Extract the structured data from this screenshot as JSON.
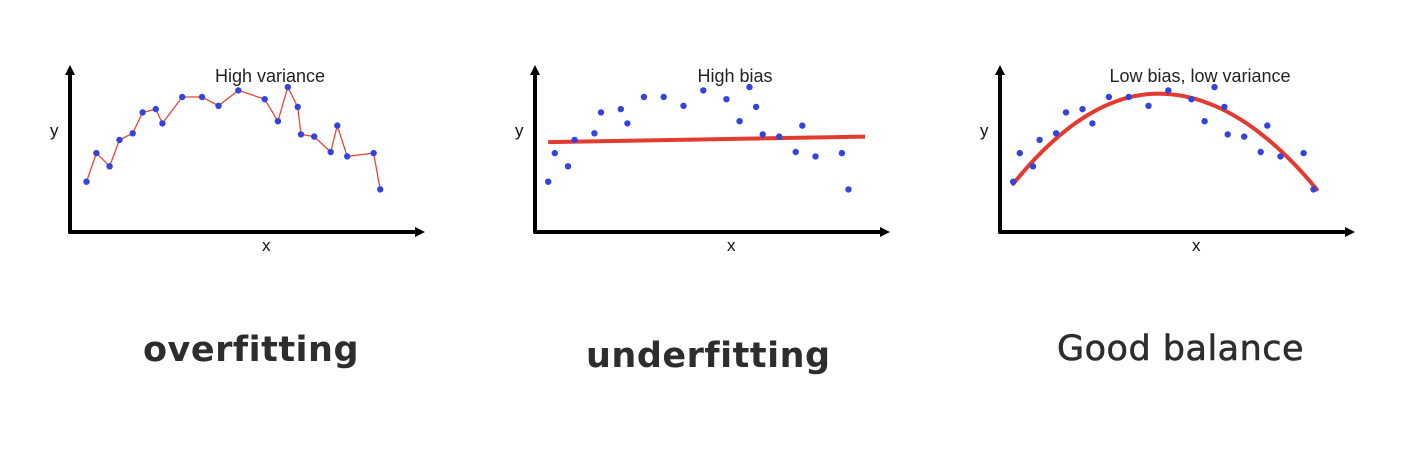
{
  "chart_data": [
    {
      "type": "scatter",
      "title": "High variance",
      "xlabel": "x",
      "ylabel": "y",
      "grid": false,
      "fit": "interpolating polyline through every point",
      "points": [
        [
          0.05,
          0.23
        ],
        [
          0.08,
          0.49
        ],
        [
          0.12,
          0.37
        ],
        [
          0.15,
          0.61
        ],
        [
          0.19,
          0.67
        ],
        [
          0.22,
          0.86
        ],
        [
          0.26,
          0.89
        ],
        [
          0.28,
          0.76
        ],
        [
          0.34,
          1.0
        ],
        [
          0.4,
          1.0
        ],
        [
          0.45,
          0.92
        ],
        [
          0.51,
          1.06
        ],
        [
          0.59,
          0.98
        ],
        [
          0.63,
          0.78
        ],
        [
          0.66,
          1.09
        ],
        [
          0.69,
          0.91
        ],
        [
          0.7,
          0.66
        ],
        [
          0.74,
          0.64
        ],
        [
          0.79,
          0.5
        ],
        [
          0.81,
          0.74
        ],
        [
          0.84,
          0.46
        ],
        [
          0.92,
          0.49
        ],
        [
          0.94,
          0.16
        ]
      ]
    },
    {
      "type": "scatter",
      "title": "High bias",
      "xlabel": "x",
      "ylabel": "y",
      "grid": false,
      "fit": "straight line",
      "fit_line": [
        [
          0.04,
          0.59
        ],
        [
          1.0,
          0.64
        ]
      ],
      "points": [
        [
          0.04,
          0.23
        ],
        [
          0.06,
          0.49
        ],
        [
          0.1,
          0.37
        ],
        [
          0.12,
          0.61
        ],
        [
          0.18,
          0.67
        ],
        [
          0.2,
          0.86
        ],
        [
          0.26,
          0.89
        ],
        [
          0.28,
          0.76
        ],
        [
          0.33,
          1.0
        ],
        [
          0.39,
          1.0
        ],
        [
          0.45,
          0.92
        ],
        [
          0.51,
          1.06
        ],
        [
          0.58,
          0.98
        ],
        [
          0.62,
          0.78
        ],
        [
          0.65,
          1.09
        ],
        [
          0.67,
          0.91
        ],
        [
          0.69,
          0.66
        ],
        [
          0.74,
          0.64
        ],
        [
          0.79,
          0.5
        ],
        [
          0.81,
          0.74
        ],
        [
          0.85,
          0.46
        ],
        [
          0.93,
          0.49
        ],
        [
          0.95,
          0.16
        ]
      ]
    },
    {
      "type": "scatter",
      "title": "Low bias, low variance",
      "xlabel": "x",
      "ylabel": "y",
      "grid": false,
      "fit": "parabola",
      "fit_curve": {
        "x_start": 0.04,
        "x_end": 0.96,
        "peak_x": 0.48,
        "peak_y": 1.03,
        "end_left_y": 0.21,
        "end_right_y": 0.16
      },
      "points": [
        [
          0.04,
          0.23
        ],
        [
          0.06,
          0.49
        ],
        [
          0.1,
          0.37
        ],
        [
          0.12,
          0.61
        ],
        [
          0.17,
          0.67
        ],
        [
          0.2,
          0.86
        ],
        [
          0.25,
          0.89
        ],
        [
          0.28,
          0.76
        ],
        [
          0.33,
          1.0
        ],
        [
          0.39,
          1.0
        ],
        [
          0.45,
          0.92
        ],
        [
          0.51,
          1.06
        ],
        [
          0.58,
          0.98
        ],
        [
          0.62,
          0.78
        ],
        [
          0.65,
          1.09
        ],
        [
          0.68,
          0.91
        ],
        [
          0.69,
          0.66
        ],
        [
          0.74,
          0.64
        ],
        [
          0.79,
          0.5
        ],
        [
          0.81,
          0.74
        ],
        [
          0.85,
          0.46
        ],
        [
          0.92,
          0.49
        ],
        [
          0.95,
          0.16
        ]
      ]
    }
  ],
  "captions": {
    "overfit": "overfitting",
    "underfit": "underfitting",
    "good": "Good balance"
  },
  "colors": {
    "axis": "#000000",
    "point": "#3344dd",
    "fit": "#e33b2f",
    "overfit_line": "#ee4433",
    "caption": "#2d2d2d"
  }
}
